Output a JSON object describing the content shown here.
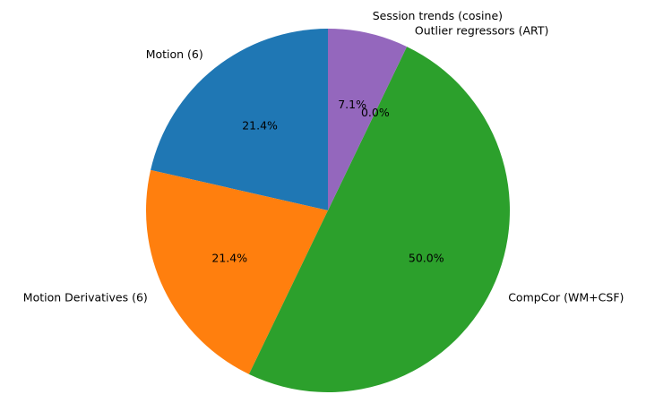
{
  "chart_data": {
    "type": "pie",
    "title": "",
    "start_angle_deg": 90,
    "direction": "counterclockwise",
    "slices": [
      {
        "label": "Motion (6)",
        "value": 6,
        "percent_label": "21.4%",
        "color": "#1f77b4"
      },
      {
        "label": "Motion Derivatives (6)",
        "value": 6,
        "percent_label": "21.4%",
        "color": "#ff7f0e"
      },
      {
        "label": "CompCor (WM+CSF)",
        "value": 14,
        "percent_label": "50.0%",
        "color": "#2ca02c"
      },
      {
        "label": "Outlier regressors (ART)",
        "value": 0,
        "percent_label": "0.0%",
        "color": "#d62728"
      },
      {
        "label": "Session trends (cosine)",
        "value": 2,
        "percent_label": "7.1%",
        "color": "#9467bd"
      }
    ]
  }
}
